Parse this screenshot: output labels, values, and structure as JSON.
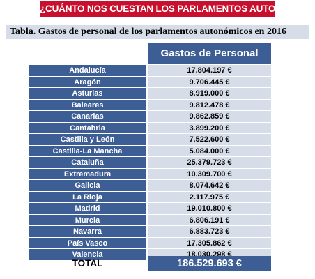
{
  "banner": "¿CUÁNTO NOS CUESTAN LOS PARLAMENTOS AUTONÓMICOS?",
  "caption": "Tabla. Gastos de personal de los parlamentos autonómicos en 2016",
  "column_header": "Gastos de Personal",
  "rows": [
    {
      "region": "Andalucía",
      "amount": "17.804.197 €"
    },
    {
      "region": "Aragón",
      "amount": "9.706.445 €"
    },
    {
      "region": "Asturias",
      "amount": "8.919.000 €"
    },
    {
      "region": "Baleares",
      "amount": "9.812.478 €"
    },
    {
      "region": "Canarias",
      "amount": "9.862.859 €"
    },
    {
      "region": "Cantabria",
      "amount": "3.899.200 €"
    },
    {
      "region": "Castilla y León",
      "amount": "7.522.600 €"
    },
    {
      "region": "Castilla-La Mancha",
      "amount": "5.084.000 €"
    },
    {
      "region": "Cataluña",
      "amount": "25.379.723 €"
    },
    {
      "region": "Extremadura",
      "amount": "10.309.700 €"
    },
    {
      "region": "Galicia",
      "amount": "8.074.642 €"
    },
    {
      "region": "La Rioja",
      "amount": "2.117.975 €"
    },
    {
      "region": "Madrid",
      "amount": "19.010.800 €"
    },
    {
      "region": "Murcia",
      "amount": "6.806.191 €"
    },
    {
      "region": "Navarra",
      "amount": "6.883.723 €"
    },
    {
      "region": "País Vasco",
      "amount": "17.305.862 €"
    },
    {
      "region": "Valencia",
      "amount": "18.030.298 €"
    }
  ],
  "total": {
    "label": "TOTAL",
    "amount": "186.529.693 €"
  },
  "colors": {
    "banner": "#c8102e",
    "header_blue": "#3d5d95",
    "value_bg": "#d6dde9"
  }
}
